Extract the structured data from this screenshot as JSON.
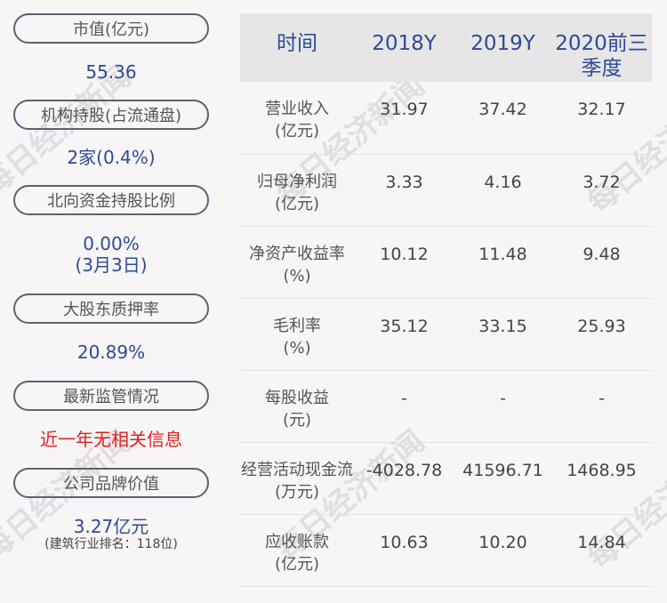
{
  "watermark": "每日经济新闻",
  "left": [
    {
      "label": "市值(亿元)",
      "value": "55.36"
    },
    {
      "label": "机构持股(占流通盘)",
      "value": "2家(0.4%)"
    },
    {
      "label": "北向资金持股比例",
      "value": "0.00%",
      "value2": "(3月3日)"
    },
    {
      "label": "大股东质押率",
      "value": "20.89%"
    },
    {
      "label": "最新监管情况",
      "value": "近一年无相关信息"
    },
    {
      "label": "公司品牌价值",
      "value": "3.27亿元",
      "note": "(建筑行业排名：118位)"
    }
  ],
  "table": {
    "headers": [
      "时间",
      "2018Y",
      "2019Y",
      "2020前三季度"
    ],
    "rows": [
      {
        "label": "营业收入",
        "unit": "(亿元)",
        "values": [
          "31.97",
          "37.42",
          "32.17"
        ]
      },
      {
        "label": "归母净利润",
        "unit": "(亿元)",
        "values": [
          "3.33",
          "4.16",
          "3.72"
        ]
      },
      {
        "label": "净资产收益率",
        "unit": "(%)",
        "values": [
          "10.12",
          "11.48",
          "9.48"
        ]
      },
      {
        "label": "毛利率",
        "unit": "(%)",
        "values": [
          "35.12",
          "33.15",
          "25.93"
        ]
      },
      {
        "label": "每股收益",
        "unit": "(元)",
        "values": [
          "-",
          "-",
          "-"
        ]
      },
      {
        "label": "经营活动现金流",
        "unit": "(万元)",
        "values": [
          "-4028.78",
          "41596.71",
          "1468.95"
        ]
      },
      {
        "label": "应收账款",
        "unit": "(亿元)",
        "values": [
          "10.63",
          "10.20",
          "14.84"
        ]
      }
    ]
  }
}
